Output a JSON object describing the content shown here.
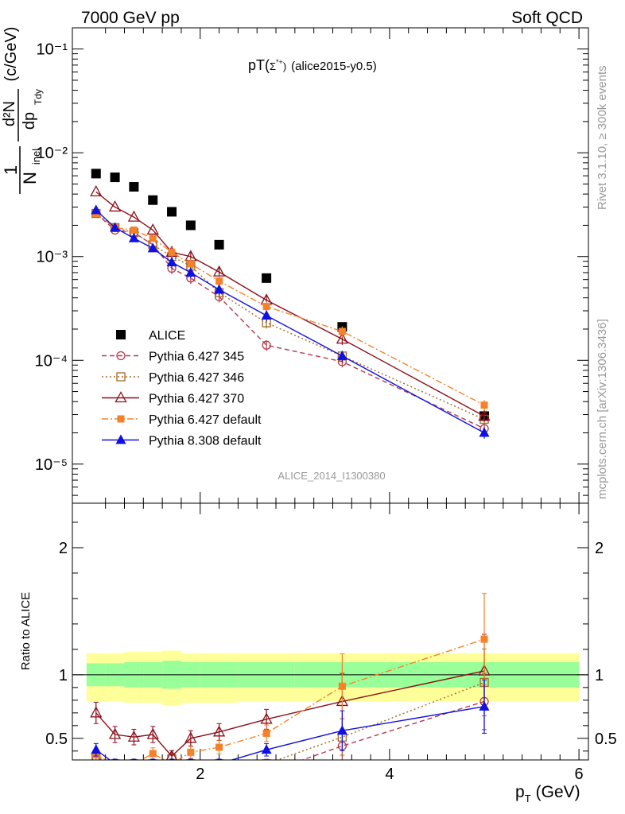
{
  "header": {
    "left": "7000 GeV pp",
    "right": "Soft QCD"
  },
  "plot_title": {
    "main": "pT(",
    "particle": "Σ",
    "sup": "*+",
    "close": ")",
    "tag": "(alice2015-y0.5)"
  },
  "analysis_id": "ALICE_2014_I1300380",
  "side_text": {
    "rivet": "Rivet 3.1.10, ≥ 300k events",
    "mcplots": "mcplots.cern.ch [arXiv:1306.3436]"
  },
  "ylabel_top": {
    "one": "1",
    "n": "N",
    "inel": "inel",
    "d2n": "d²N",
    "dp": "dp",
    "tdy": "Tdy",
    "unit": "(c/GeV)"
  },
  "ylabel_bottom": "Ratio to ALICE",
  "xlabel": {
    "p": "p",
    "t": "T",
    "unit": "(GeV)"
  },
  "colors": {
    "alice": "#000000",
    "p345": "#b23a4c",
    "p346": "#a06a28",
    "p370": "#8b0f1a",
    "p6def": "#f5822a",
    "p8def": "#1010e0",
    "band_inner": "#99ff99",
    "band_outer": "#ffff99"
  },
  "chart_data": [
    {
      "type": "scatter",
      "ylog": true,
      "xlim": [
        0.65,
        6.1
      ],
      "ylim": [
        4.2e-06,
        0.16
      ],
      "yticks": [
        {
          "value": 0.1,
          "label": "10⁻¹"
        },
        {
          "value": 0.01,
          "label": "10⁻²"
        },
        {
          "value": 0.001,
          "label": "10⁻³"
        },
        {
          "value": 0.0001,
          "label": "10⁻⁴"
        },
        {
          "value": 1e-05,
          "label": "10⁻⁵"
        }
      ],
      "x": [
        0.9,
        1.1,
        1.3,
        1.5,
        1.7,
        1.9,
        2.2,
        2.7,
        3.5,
        5.0
      ],
      "series": [
        {
          "name": "ALICE",
          "key": "alice",
          "marker": "square",
          "dash": "none",
          "values": [
            0.0063,
            0.0058,
            0.0047,
            0.0035,
            0.0027,
            0.002,
            0.0013,
            0.00062,
            0.00021,
            2.9e-05
          ]
        },
        {
          "name": "Pythia 6.427 345",
          "key": "p345",
          "marker": "circle-open",
          "dash": "6,4",
          "values": [
            0.0026,
            0.0018,
            0.0017,
            0.0013,
            0.00077,
            0.00062,
            0.00041,
            0.00014,
            9.7e-05,
            2.2e-05
          ]
        },
        {
          "name": "Pythia 6.427 346",
          "key": "p346",
          "marker": "square-open",
          "dash": "2,3",
          "values": [
            0.0026,
            0.0019,
            0.0017,
            0.0013,
            0.001,
            0.00081,
            0.00045,
            0.00023,
            0.00011,
            2.7e-05
          ]
        },
        {
          "name": "Pythia 6.427 370",
          "key": "p370",
          "marker": "triangle-open",
          "dash": "none",
          "values": [
            0.0042,
            0.003,
            0.0024,
            0.0018,
            0.0011,
            0.001,
            0.00071,
            0.00038,
            0.00016,
            2.9e-05
          ]
        },
        {
          "name": "Pythia 6.427 default",
          "key": "p6def",
          "marker": "square-small",
          "dash": "8,3,2,3",
          "values": [
            0.0026,
            0.0019,
            0.0018,
            0.0015,
            0.0011,
            0.00085,
            0.00058,
            0.00033,
            0.00019,
            3.7e-05
          ]
        },
        {
          "name": "Pythia 8.308 default",
          "key": "p8def",
          "marker": "triangle",
          "dash": "none",
          "values": [
            0.0028,
            0.0019,
            0.0015,
            0.0012,
            0.00088,
            0.0007,
            0.00048,
            0.00027,
            0.00011,
            2e-05
          ]
        }
      ]
    },
    {
      "type": "scatter",
      "ylabel": "Ratio to ALICE",
      "xlabel": "pT (GeV)",
      "xlim": [
        0.65,
        6.1
      ],
      "ylim": [
        0.33,
        2.35
      ],
      "xticks": [
        2,
        4,
        6
      ],
      "yticks": [
        0.5,
        1,
        2
      ],
      "reference_line": 1,
      "bands": {
        "edges": [
          0.8,
          1.0,
          1.2,
          1.4,
          1.6,
          1.8,
          2.0,
          2.4,
          3.0,
          4.0,
          6.0
        ],
        "inner": [
          [
            0.91,
            1.09
          ],
          [
            0.91,
            1.09
          ],
          [
            0.9,
            1.1
          ],
          [
            0.9,
            1.1
          ],
          [
            0.89,
            1.11
          ],
          [
            0.9,
            1.1
          ],
          [
            0.9,
            1.1
          ],
          [
            0.9,
            1.1
          ],
          [
            0.9,
            1.1
          ],
          [
            0.9,
            1.1
          ]
        ],
        "outer": [
          [
            0.79,
            1.17
          ],
          [
            0.79,
            1.17
          ],
          [
            0.78,
            1.18
          ],
          [
            0.78,
            1.18
          ],
          [
            0.76,
            1.19
          ],
          [
            0.78,
            1.17
          ],
          [
            0.78,
            1.17
          ],
          [
            0.79,
            1.17
          ],
          [
            0.79,
            1.17
          ],
          [
            0.79,
            1.17
          ]
        ]
      },
      "x": [
        0.9,
        1.1,
        1.3,
        1.5,
        1.7,
        1.9,
        2.2,
        2.7,
        3.5,
        5.0
      ],
      "series": [
        {
          "name": "Pythia 6.427 345",
          "key": "p345",
          "marker": "circle-open",
          "dash": "6,4",
          "values": [
            0.35,
            0.3,
            0.3,
            0.3,
            0.3,
            0.3,
            0.3,
            0.23,
            0.44,
            0.79
          ]
        },
        {
          "name": "Pythia 6.427 346",
          "key": "p346",
          "marker": "square-open",
          "dash": "2,3",
          "values": [
            0.35,
            0.3,
            0.3,
            0.3,
            0.34,
            0.3,
            0.3,
            0.3,
            0.51,
            0.94
          ]
        },
        {
          "name": "Pythia 6.427 370",
          "key": "p370",
          "marker": "triangle-open",
          "dash": "none",
          "values": [
            0.7,
            0.53,
            0.51,
            0.53,
            0.36,
            0.5,
            0.55,
            0.65,
            0.79,
            1.03
          ]
        },
        {
          "name": "Pythia 6.427 default",
          "key": "p6def",
          "marker": "square-small",
          "dash": "8,3,2,3",
          "values": [
            0.37,
            0.3,
            0.3,
            0.38,
            0.3,
            0.39,
            0.43,
            0.54,
            0.91,
            1.28
          ]
        },
        {
          "name": "Pythia 8.308 default",
          "key": "p8def",
          "marker": "triangle",
          "dash": "none",
          "values": [
            0.41,
            0.3,
            0.3,
            0.3,
            0.3,
            0.3,
            0.3,
            0.41,
            0.56,
            0.75
          ]
        }
      ]
    }
  ]
}
